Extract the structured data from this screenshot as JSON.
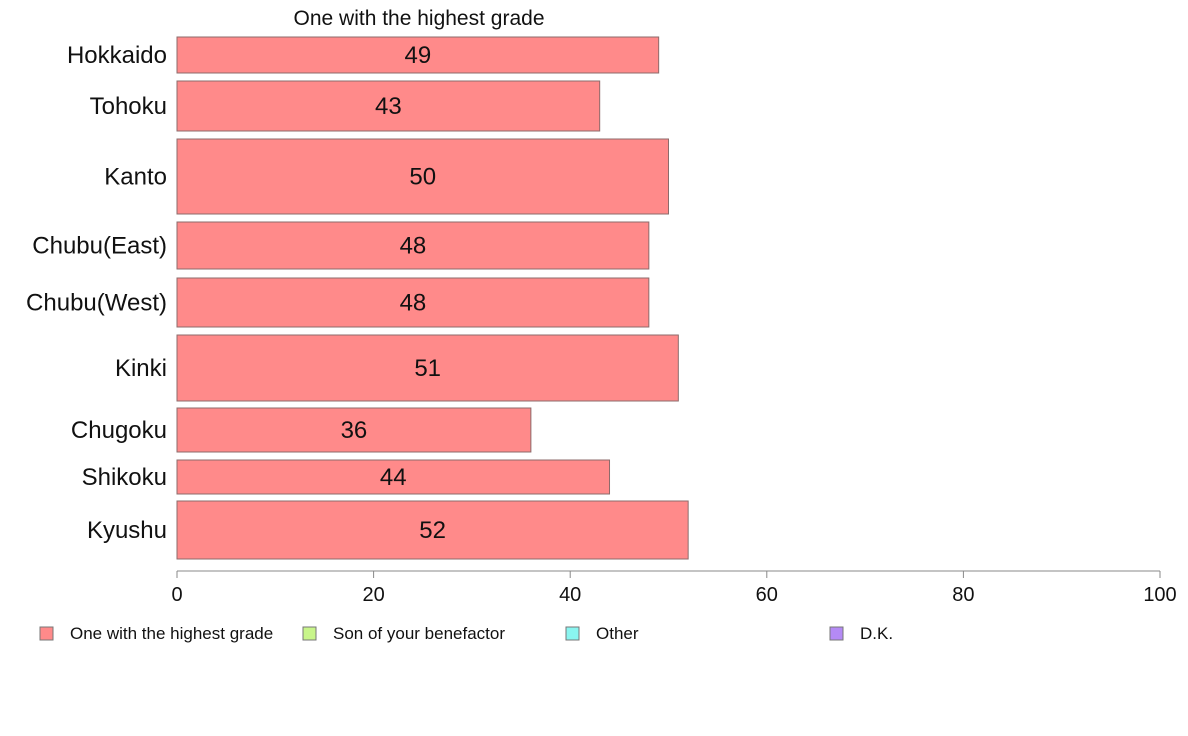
{
  "chart_data": {
    "type": "bar",
    "orientation": "horizontal",
    "title": "One with the highest grade",
    "categories": [
      "Hokkaido",
      "Tohoku",
      "Kanto",
      "Chubu(East)",
      "Chubu(West)",
      "Kinki",
      "Chugoku",
      "Shikoku",
      "Kyushu"
    ],
    "series": [
      {
        "name": "One with the highest grade",
        "values": [
          49,
          43,
          50,
          48,
          48,
          51,
          36,
          44,
          52
        ],
        "color": "#ff8a8a"
      }
    ],
    "data_labels": [
      "49",
      "43",
      "50",
      "48",
      "48",
      "51",
      "36",
      "44",
      "52"
    ],
    "xlim": [
      0,
      100
    ],
    "xticks": [
      0,
      20,
      40,
      60,
      80,
      100
    ],
    "grid": false,
    "legend_position": "bottom",
    "legend": [
      {
        "name": "One with the highest grade",
        "color": "#ff8a8a"
      },
      {
        "name": "Son of your benefactor",
        "color": "#c8f58a"
      },
      {
        "name": "Other",
        "color": "#8af5f0"
      },
      {
        "name": "D.K.",
        "color": "#b48af5"
      }
    ]
  }
}
